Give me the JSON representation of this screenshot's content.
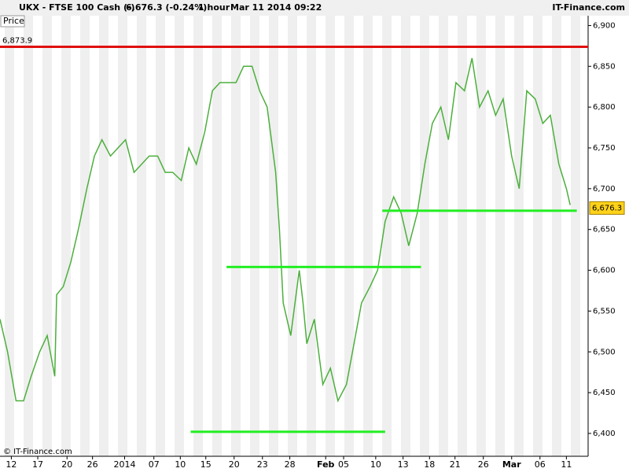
{
  "header": {
    "symbol": "UKX - FTSE 100 Cash (-)",
    "quote": "6,676.3 (-0.24%)",
    "interval": "1 hour",
    "datetime": "Mar 11 2014 09:22",
    "brand": "IT-Finance.com"
  },
  "panel_label": "Price",
  "copyright": "© IT-Finance.com",
  "chart_data": {
    "type": "line",
    "color": "#4caf3c",
    "x": [
      0,
      0.8,
      1.7,
      2.5,
      3.3,
      4.2,
      5,
      5.8,
      6,
      6.7,
      7.5,
      8.3,
      9.2,
      10,
      10.8,
      11.7,
      12.5,
      13.3,
      14.2,
      15,
      15.8,
      16.7,
      17.5,
      18.3,
      19.2,
      20,
      20.8,
      21.7,
      22.5,
      23.3,
      24.2,
      25,
      25.8,
      26.7,
      27.5,
      28.3,
      29.2,
      29.6,
      30,
      30.8,
      31.7,
      32.1,
      32.5,
      33.3,
      34.2,
      35,
      35.8,
      36.7,
      37.5,
      38.3,
      39.2,
      40,
      40.8,
      41.7,
      42.5,
      43.3,
      44.2,
      45,
      45.8,
      46.7,
      47.5,
      48.3,
      49.2,
      50,
      50.8,
      51.7,
      52.5,
      53.3,
      54.2,
      55,
      55.8,
      56.7,
      57.5,
      58.3,
      59.2,
      60,
      60.4
    ],
    "values": [
      6540,
      6500,
      6440,
      6440,
      6470,
      6500,
      6520,
      6470,
      6570,
      6580,
      6610,
      6650,
      6700,
      6740,
      6760,
      6740,
      6750,
      6760,
      6720,
      6730,
      6740,
      6740,
      6720,
      6720,
      6710,
      6750,
      6730,
      6770,
      6820,
      6830,
      6830,
      6830,
      6850,
      6850,
      6820,
      6800,
      6720,
      6650,
      6560,
      6520,
      6600,
      6560,
      6510,
      6540,
      6460,
      6480,
      6440,
      6460,
      6510,
      6560,
      6580,
      6600,
      6660,
      6690,
      6670,
      6630,
      6670,
      6730,
      6780,
      6800,
      6760,
      6830,
      6820,
      6860,
      6800,
      6820,
      6790,
      6810,
      6740,
      6700,
      6820,
      6810,
      6780,
      6790,
      6730,
      6700,
      6680
    ],
    "xlim": [
      0,
      62.3
    ],
    "ylim": [
      6372,
      6912
    ],
    "yticks": [
      {
        "value": 6400,
        "label": "6,400"
      },
      {
        "value": 6450,
        "label": "6,450"
      },
      {
        "value": 6500,
        "label": "6,500"
      },
      {
        "value": 6550,
        "label": "6,550"
      },
      {
        "value": 6600,
        "label": "6,600"
      },
      {
        "value": 6650,
        "label": "6,650"
      },
      {
        "value": 6700,
        "label": "6,700"
      },
      {
        "value": 6750,
        "label": "6,750"
      },
      {
        "value": 6800,
        "label": "6,800"
      },
      {
        "value": 6850,
        "label": "6,850"
      },
      {
        "value": 6900,
        "label": "6,900"
      }
    ],
    "xticks": [
      {
        "value": 1.2,
        "label": "12"
      },
      {
        "value": 4,
        "label": "17"
      },
      {
        "value": 7.1,
        "label": "20"
      },
      {
        "value": 9.8,
        "label": "26"
      },
      {
        "value": 13.2,
        "label": "2014"
      },
      {
        "value": 16.3,
        "label": "07"
      },
      {
        "value": 19.1,
        "label": "10"
      },
      {
        "value": 21.8,
        "label": "15"
      },
      {
        "value": 24.8,
        "label": "20"
      },
      {
        "value": 27.8,
        "label": "23"
      },
      {
        "value": 30.7,
        "label": "28"
      },
      {
        "value": 34.5,
        "label": "Feb"
      },
      {
        "value": 36.4,
        "label": "05"
      },
      {
        "value": 39.8,
        "label": "10"
      },
      {
        "value": 42.7,
        "label": "13"
      },
      {
        "value": 45.5,
        "label": "18"
      },
      {
        "value": 48.2,
        "label": "21"
      },
      {
        "value": 51.2,
        "label": "26"
      },
      {
        "value": 54.2,
        "label": "Mar"
      },
      {
        "value": 57.2,
        "label": "06"
      },
      {
        "value": 60,
        "label": "11"
      }
    ],
    "resistance": {
      "value": 6873.9,
      "label": "6,873.9",
      "color": "#e01010"
    },
    "supports": {
      "color": "#22ee22",
      "lines": [
        {
          "value": 6402,
          "x": [
            20.2,
            40.8
          ]
        },
        {
          "value": 6604,
          "x": [
            24,
            44.6
          ]
        },
        {
          "value": 6673,
          "x": [
            40.5,
            61.1
          ]
        }
      ]
    },
    "last": {
      "value": 6676.3,
      "label": "6,676.3"
    }
  }
}
